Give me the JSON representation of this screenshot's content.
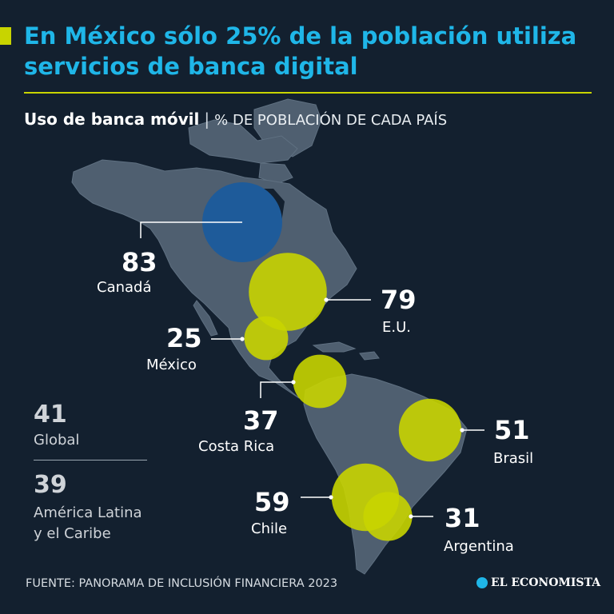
{
  "header": {
    "title": "En México sólo 25% de la población utiliza servicios de banca digital"
  },
  "subheader": {
    "title": "Uso de banca móvil",
    "separator": "|",
    "unit": "% DE POBLACIÓN DE CADA PAÍS"
  },
  "colors": {
    "background": "#13202f",
    "land": "#4f5f70",
    "highlight_bubble": "#c8d400",
    "canada_bubble": "#1e5b9a",
    "title": "#1fb6e8",
    "accent_rule": "#c8d400"
  },
  "chart_data": {
    "type": "bubble-map",
    "series": [
      {
        "category": "Canadá",
        "value": 83,
        "color": "#1e5b9a"
      },
      {
        "category": "E.U.",
        "value": 79,
        "color": "#c8d400"
      },
      {
        "category": "México",
        "value": 25,
        "color": "#c8d400"
      },
      {
        "category": "Costa Rica",
        "value": 37,
        "color": "#c8d400"
      },
      {
        "category": "Brasil",
        "value": 51,
        "color": "#c8d400"
      },
      {
        "category": "Chile",
        "value": 59,
        "color": "#c8d400"
      },
      {
        "category": "Argentina",
        "value": 31,
        "color": "#c8d400"
      }
    ],
    "aggregates": [
      {
        "label": "Global",
        "value": 41
      },
      {
        "label": "América Latina y el Caribe",
        "value": 39
      }
    ]
  },
  "aggregates": {
    "global": {
      "value": "41",
      "label": "Global"
    },
    "latam": {
      "value": "39",
      "label_line1": "América Latina",
      "label_line2": "y el Caribe"
    }
  },
  "footer": {
    "source": "FUENTE: PANORAMA DE INCLUSIÓN FINANCIERA 2023",
    "logo": "EL ECONOMISTA"
  }
}
